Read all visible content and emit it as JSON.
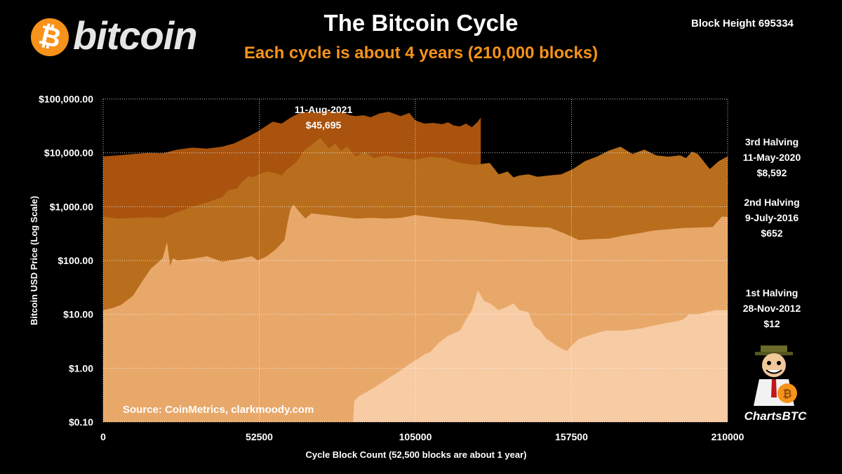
{
  "header": {
    "title": "The Bitcoin Cycle",
    "subtitle": "Each cycle is about 4 years (210,000 blocks)",
    "block_height": "Block Height  695334"
  },
  "logo": {
    "symbol": "₿",
    "word": "bitcoin",
    "color": "#f7931a"
  },
  "source": "Source:  CoinMetrics,  clarkmoody.com",
  "mascot": {
    "label": "ChartsBTC"
  },
  "chart_data": {
    "type": "area",
    "xlabel": "Cycle Block Count (52,500 blocks are about 1 year)",
    "ylabel": "Bitcoin USD Price (Log Scale)",
    "y_scale": "log",
    "xlim": [
      0,
      210000
    ],
    "ylim": [
      0.1,
      100000
    ],
    "x_ticks": [
      0,
      52500,
      105000,
      157500,
      210000
    ],
    "x_tick_labels": [
      "0",
      "52500",
      "105000",
      "157500",
      "210000"
    ],
    "y_ticks": [
      0.1,
      1,
      10,
      100,
      1000,
      10000,
      100000
    ],
    "y_tick_labels": [
      "$0.10",
      "$1.00",
      "$10.00",
      "$100.00",
      "$1,000.00",
      "$10,000.00",
      "$100,000.00"
    ],
    "grid": true,
    "series": [
      {
        "color": "#f7cba3",
        "x": [
          0,
          84000,
          84500,
          86000,
          90000,
          95000,
          100000,
          103000,
          106000,
          108000,
          110000,
          113000,
          116000,
          120000,
          122000,
          124000,
          125000,
          126000,
          128000,
          130000,
          131500,
          133000,
          136000,
          138000,
          140000,
          143000,
          145000,
          147000,
          149000,
          151000,
          153000,
          155000,
          156000,
          158000,
          160000,
          163000,
          166000,
          169000,
          172000,
          175000,
          178000,
          181000,
          184000,
          187000,
          190000,
          193000,
          195000,
          197000,
          200000,
          203000,
          206000,
          208000,
          210000
        ],
        "y": [
          0.1,
          0.1,
          0.25,
          0.3,
          0.4,
          0.6,
          0.9,
          1.2,
          1.5,
          1.8,
          2,
          3,
          4,
          5,
          8,
          12,
          18,
          28,
          18,
          16,
          14,
          12,
          14,
          16,
          12,
          11,
          6,
          5,
          3.5,
          3,
          2.5,
          2.2,
          2.1,
          2.8,
          3.5,
          4,
          4.5,
          5,
          5,
          5,
          5.2,
          5.5,
          6,
          6.5,
          7,
          7.5,
          8,
          10,
          10,
          11,
          12,
          12,
          12
        ]
      },
      {
        "color": "#e8a86a",
        "x": [
          0,
          3000,
          6000,
          10000,
          13000,
          16000,
          20000,
          21500,
          22500,
          23500,
          25000,
          28000,
          31000,
          35000,
          40000,
          45000,
          50000,
          52000,
          55000,
          58000,
          61000,
          62000,
          63000,
          64000,
          66000,
          68000,
          70000,
          75000,
          80000,
          85000,
          90000,
          95000,
          100000,
          105000,
          110000,
          115000,
          120000,
          125000,
          130000,
          135000,
          140000,
          145000,
          150000,
          155000,
          160000,
          165000,
          170000,
          175000,
          180000,
          185000,
          190000,
          195000,
          200000,
          205000,
          208000,
          210000
        ],
        "y": [
          12,
          13,
          15,
          22,
          40,
          70,
          110,
          220,
          80,
          110,
          100,
          105,
          110,
          120,
          95,
          105,
          120,
          100,
          120,
          160,
          240,
          500,
          900,
          1100,
          800,
          600,
          750,
          700,
          650,
          600,
          620,
          600,
          620,
          700,
          650,
          600,
          580,
          550,
          500,
          450,
          440,
          420,
          410,
          320,
          240,
          250,
          255,
          290,
          320,
          360,
          380,
          400,
          410,
          420,
          652,
          652
        ]
      },
      {
        "color": "#b86e1c",
        "x": [
          0,
          5000,
          10000,
          15000,
          20000,
          25000,
          30000,
          35000,
          40000,
          42000,
          43500,
          45000,
          47000,
          49000,
          50000,
          52500,
          55000,
          58000,
          60000,
          62000,
          65000,
          67500,
          70000,
          73000,
          76000,
          78000,
          80000,
          82000,
          85000,
          88000,
          91000,
          95000,
          100000,
          105000,
          110000,
          115000,
          120000,
          125000,
          130000,
          133000,
          136000,
          138000,
          140000,
          143000,
          146000,
          150000,
          154000,
          158000,
          162000,
          166000,
          170000,
          174000,
          178000,
          182000,
          186000,
          190000,
          194000,
          196000,
          198000,
          200000,
          204000,
          207000,
          210000
        ],
        "y": [
          652,
          600,
          620,
          640,
          620,
          800,
          1000,
          1200,
          1500,
          2000,
          2100,
          2200,
          3000,
          3700,
          3500,
          4000,
          4500,
          4200,
          3800,
          5000,
          6800,
          11000,
          14000,
          19000,
          12000,
          15000,
          11000,
          13000,
          8500,
          10500,
          8000,
          9000,
          8000,
          7500,
          8500,
          8000,
          6500,
          6000,
          6500,
          4000,
          4500,
          3500,
          3800,
          4000,
          3600,
          3800,
          4000,
          5000,
          7000,
          8500,
          11000,
          13000,
          9500,
          11500,
          9000,
          8500,
          9000,
          8000,
          10500,
          9500,
          5000,
          7000,
          8592
        ]
      },
      {
        "color": "#a9530e",
        "x": [
          0,
          5000,
          10000,
          15000,
          20000,
          25000,
          30000,
          35000,
          40000,
          44000,
          48000,
          52000,
          55000,
          57000,
          60000,
          63000,
          66000,
          69000,
          72000,
          75000,
          78000,
          81000,
          83000,
          85000,
          87500,
          90000,
          93000,
          96000,
          100000,
          103000,
          105000,
          108000,
          111000,
          114000,
          116000,
          118000,
          120000,
          122000,
          124000,
          126000,
          127000
        ],
        "y": [
          8592,
          9000,
          9500,
          10000,
          9800,
          11500,
          12500,
          12000,
          13000,
          15000,
          19000,
          25000,
          32000,
          38000,
          35000,
          45000,
          55000,
          58000,
          56000,
          60000,
          58000,
          55000,
          50000,
          48000,
          50000,
          46000,
          54000,
          58000,
          48000,
          55000,
          40000,
          35000,
          36000,
          34000,
          37000,
          32000,
          31000,
          35000,
          30000,
          38000,
          45695
        ]
      }
    ],
    "annotations": [
      {
        "line1": "11-Aug-2021",
        "line2": "$45,695",
        "x": 127000,
        "y": 45695
      },
      {
        "line1": "3rd Halving",
        "line2": "11-May-2020",
        "line3": "$8,592"
      },
      {
        "line1": "2nd Halving",
        "line2": "9-July-2016",
        "line3": "$652"
      },
      {
        "line1": "1st Halving",
        "line2": "28-Nov-2012",
        "line3": "$12"
      }
    ]
  }
}
